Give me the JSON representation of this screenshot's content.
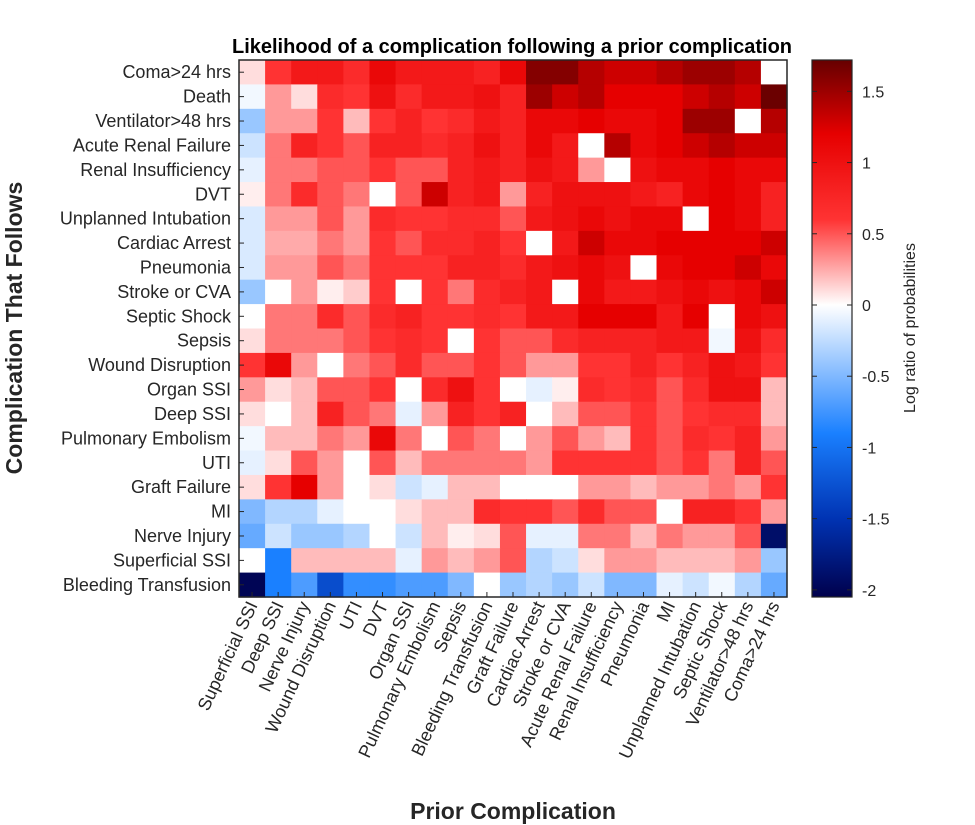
{
  "chart_data": {
    "type": "heatmap",
    "title": "Likelihood of a complication following a prior complication",
    "xlabel": "Prior Complication",
    "ylabel": "Complication That Follows",
    "x_categories": [
      "Superficial SSI",
      "Deep SSI",
      "Nerve Injury",
      "Wound Disruption",
      "UTI",
      "DVT",
      "Organ SSI",
      "Pulmonary Embolism",
      "Sepsis",
      "Bleeding Transfusion",
      "Graft Failure",
      "Cardiac Arrest",
      "Stroke or CVA",
      "Acute Renal Failure",
      "Renal Insufficiency",
      "Pneumonia",
      "MI",
      "Unplanned Intubation",
      "Septic Shock",
      "Ventilator>48 hrs",
      "Coma>24 hrs"
    ],
    "y_categories": [
      "Coma>24 hrs",
      "Death",
      "Ventilator>48 hrs",
      "Acute Renal Failure",
      "Renal Insufficiency",
      "DVT",
      "Unplanned Intubation",
      "Cardiac Arrest",
      "Pneumonia",
      "Stroke or CVA",
      "Septic Shock",
      "Sepsis",
      "Wound Disruption",
      "Organ SSI",
      "Deep SSI",
      "Pulmonary Embolism",
      "UTI",
      "Graft Failure",
      "MI",
      "Nerve Injury",
      "Superficial SSI",
      "Bleeding Transfusion"
    ],
    "values": [
      [
        0.1,
        0.6,
        0.9,
        0.9,
        0.7,
        1.1,
        0.9,
        0.9,
        0.9,
        0.8,
        1.1,
        1.6,
        1.6,
        1.4,
        1.3,
        1.3,
        1.4,
        1.5,
        1.5,
        1.4,
        0.0
      ],
      [
        -0.05,
        0.3,
        0.1,
        0.7,
        0.6,
        1.0,
        0.7,
        0.9,
        0.9,
        1.0,
        0.8,
        1.5,
        1.3,
        1.4,
        1.2,
        1.2,
        1.2,
        1.3,
        1.4,
        1.3,
        1.7
      ],
      [
        -0.4,
        0.3,
        0.3,
        0.6,
        0.2,
        0.6,
        0.8,
        0.6,
        0.7,
        0.9,
        0.8,
        1.1,
        1.1,
        1.2,
        1.1,
        1.1,
        1.2,
        1.5,
        1.5,
        0.0,
        1.4
      ],
      [
        -0.2,
        0.4,
        0.8,
        0.6,
        0.5,
        0.8,
        0.8,
        0.7,
        0.8,
        1.0,
        0.8,
        1.1,
        0.9,
        0.0,
        1.4,
        1.1,
        1.2,
        1.3,
        1.4,
        1.3,
        1.3
      ],
      [
        -0.1,
        0.4,
        0.4,
        0.5,
        0.5,
        0.6,
        0.5,
        0.5,
        0.8,
        0.9,
        0.8,
        1.0,
        0.9,
        0.3,
        0.0,
        1.0,
        1.1,
        1.1,
        1.2,
        1.1,
        1.1
      ],
      [
        0.05,
        0.4,
        0.7,
        0.5,
        0.4,
        0.0,
        0.5,
        1.3,
        0.8,
        0.9,
        0.3,
        0.8,
        1.0,
        1.0,
        1.0,
        0.9,
        0.8,
        1.1,
        1.2,
        1.1,
        0.8
      ],
      [
        -0.15,
        0.3,
        0.3,
        0.5,
        0.3,
        0.7,
        0.6,
        0.6,
        0.7,
        0.7,
        0.5,
        0.9,
        1.0,
        1.1,
        1.0,
        1.1,
        1.1,
        0.0,
        1.2,
        1.1,
        0.8
      ],
      [
        -0.15,
        0.25,
        0.25,
        0.4,
        0.3,
        0.6,
        0.5,
        0.7,
        0.7,
        0.8,
        0.6,
        0.0,
        0.9,
        1.3,
        1.1,
        1.1,
        1.2,
        1.2,
        1.2,
        1.2,
        1.3
      ],
      [
        -0.15,
        0.3,
        0.3,
        0.5,
        0.4,
        0.6,
        0.6,
        0.6,
        0.8,
        0.8,
        0.7,
        0.9,
        1.0,
        1.1,
        1.0,
        0.0,
        1.1,
        1.2,
        1.2,
        1.3,
        1.1
      ],
      [
        -0.4,
        0.0,
        0.3,
        0.05,
        0.15,
        0.6,
        0.0,
        0.6,
        0.4,
        0.7,
        0.8,
        0.9,
        0.0,
        1.1,
        0.9,
        0.9,
        1.0,
        1.1,
        1.0,
        1.1,
        1.3
      ],
      [
        0.0,
        0.4,
        0.4,
        0.7,
        0.5,
        0.7,
        0.8,
        0.6,
        0.6,
        0.7,
        0.6,
        0.9,
        0.9,
        1.2,
        1.2,
        1.2,
        0.9,
        1.2,
        0.0,
        1.1,
        1.0
      ],
      [
        0.1,
        0.4,
        0.4,
        0.4,
        0.5,
        0.6,
        0.7,
        0.6,
        0.0,
        0.6,
        0.5,
        0.5,
        0.7,
        0.8,
        0.8,
        0.8,
        0.9,
        0.9,
        -0.05,
        1.0,
        0.7
      ],
      [
        0.6,
        1.1,
        0.3,
        0.0,
        0.4,
        0.5,
        0.7,
        0.5,
        0.5,
        0.6,
        0.5,
        0.3,
        0.3,
        0.6,
        0.6,
        0.8,
        0.6,
        0.8,
        1.0,
        0.9,
        0.6
      ],
      [
        0.3,
        0.1,
        0.2,
        0.5,
        0.5,
        0.6,
        0.0,
        0.7,
        1.0,
        0.6,
        0.0,
        -0.1,
        0.05,
        0.7,
        0.6,
        0.7,
        0.5,
        0.7,
        1.0,
        1.0,
        0.2
      ],
      [
        0.1,
        0.0,
        0.2,
        0.8,
        0.5,
        0.4,
        -0.1,
        0.3,
        0.8,
        0.6,
        0.8,
        0.0,
        0.2,
        0.5,
        0.5,
        0.6,
        0.5,
        0.6,
        0.7,
        0.7,
        0.2
      ],
      [
        -0.05,
        0.2,
        0.2,
        0.4,
        0.3,
        1.1,
        0.4,
        0.0,
        0.5,
        0.4,
        0.0,
        0.3,
        0.5,
        0.3,
        0.2,
        0.6,
        0.5,
        0.7,
        0.6,
        0.8,
        0.3
      ],
      [
        -0.1,
        0.1,
        0.5,
        0.3,
        0.0,
        0.5,
        0.2,
        0.4,
        0.4,
        0.4,
        0.4,
        0.3,
        0.6,
        0.6,
        0.6,
        0.6,
        0.5,
        0.6,
        0.4,
        0.8,
        0.5
      ],
      [
        0.1,
        0.6,
        1.2,
        0.3,
        0.0,
        0.1,
        -0.2,
        -0.1,
        0.2,
        0.2,
        0.0,
        0.0,
        0.0,
        0.3,
        0.3,
        0.2,
        0.3,
        0.3,
        0.4,
        0.3,
        0.6
      ],
      [
        -0.5,
        -0.3,
        -0.3,
        -0.1,
        0.0,
        0.0,
        0.1,
        0.2,
        0.2,
        0.7,
        0.6,
        0.6,
        0.5,
        0.7,
        0.5,
        0.5,
        0.0,
        0.8,
        0.8,
        0.6,
        0.3
      ],
      [
        -0.6,
        -0.2,
        -0.4,
        -0.4,
        -0.3,
        0.0,
        -0.2,
        0.2,
        0.05,
        0.1,
        0.5,
        -0.1,
        -0.1,
        0.4,
        0.4,
        0.2,
        0.4,
        0.3,
        0.3,
        0.5,
        -1.9
      ],
      [
        0.0,
        -0.9,
        0.2,
        0.2,
        0.2,
        0.2,
        -0.1,
        0.3,
        0.2,
        0.3,
        0.5,
        -0.3,
        -0.2,
        0.1,
        0.3,
        0.3,
        0.2,
        0.2,
        0.2,
        0.3,
        -0.4
      ],
      [
        -2.0,
        -0.9,
        -0.7,
        -1.3,
        -0.8,
        -0.8,
        -0.7,
        -0.7,
        -0.5,
        0.0,
        -0.4,
        -0.3,
        -0.4,
        -0.2,
        -0.5,
        -0.5,
        -0.1,
        -0.2,
        -0.05,
        -0.3,
        -0.6
      ]
    ],
    "colorbar": {
      "label": "Log ratio of probabilities",
      "min": -2.05,
      "max": 1.72,
      "ticks": [
        "1.5",
        "1",
        "0.5",
        "0",
        "-0.5",
        "-1",
        "-1.5",
        "-2"
      ],
      "tick_values": [
        1.5,
        1,
        0.5,
        0,
        -0.5,
        -1,
        -1.5,
        -2
      ],
      "colormap": [
        "#00004c",
        "#0033b3",
        "#1a80ff",
        "#ffffff",
        "#ff3333",
        "#e60000",
        "#660000"
      ]
    }
  }
}
